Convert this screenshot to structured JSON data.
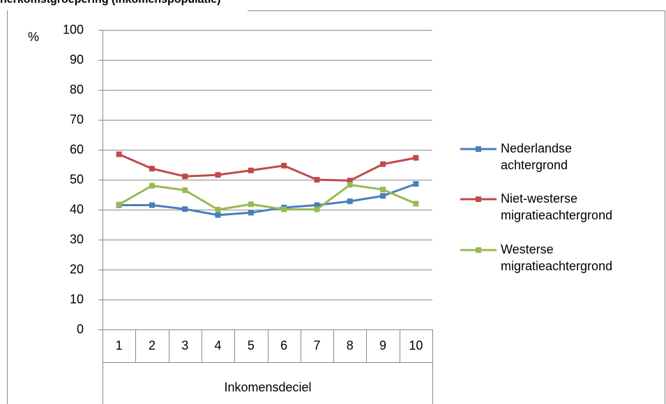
{
  "chart_data": {
    "type": "line",
    "title": "herkomstgroepering (inkomenspopulatie)",
    "y_unit_label": "%",
    "x_label": "Inkomensdeciel",
    "categories": [
      "1",
      "2",
      "3",
      "4",
      "5",
      "6",
      "7",
      "8",
      "9",
      "10"
    ],
    "series": [
      {
        "name": "Nederlandse achtergrond",
        "color": "#4a7ebb",
        "values": [
          41.5,
          41.5,
          40.2,
          38.2,
          39,
          40.7,
          41.5,
          42.8,
          44.6,
          48.6
        ]
      },
      {
        "name": "Niet-westerse migratieachtergrond",
        "color": "#be4b48",
        "values": [
          58.5,
          53.7,
          51.1,
          51.6,
          53.1,
          54.7,
          50,
          49.7,
          55.2,
          57.3
        ]
      },
      {
        "name": "Westerse migratieachtergrond",
        "color": "#98b954",
        "values": [
          41.7,
          48,
          46.5,
          40,
          41.8,
          40.1,
          40.1,
          48.3,
          46.7,
          42
        ]
      }
    ],
    "ylim": [
      0,
      100
    ],
    "yticks": [
      0,
      10,
      20,
      30,
      40,
      50,
      60,
      70,
      80,
      90,
      100
    ],
    "grid": true,
    "legend": "right"
  }
}
